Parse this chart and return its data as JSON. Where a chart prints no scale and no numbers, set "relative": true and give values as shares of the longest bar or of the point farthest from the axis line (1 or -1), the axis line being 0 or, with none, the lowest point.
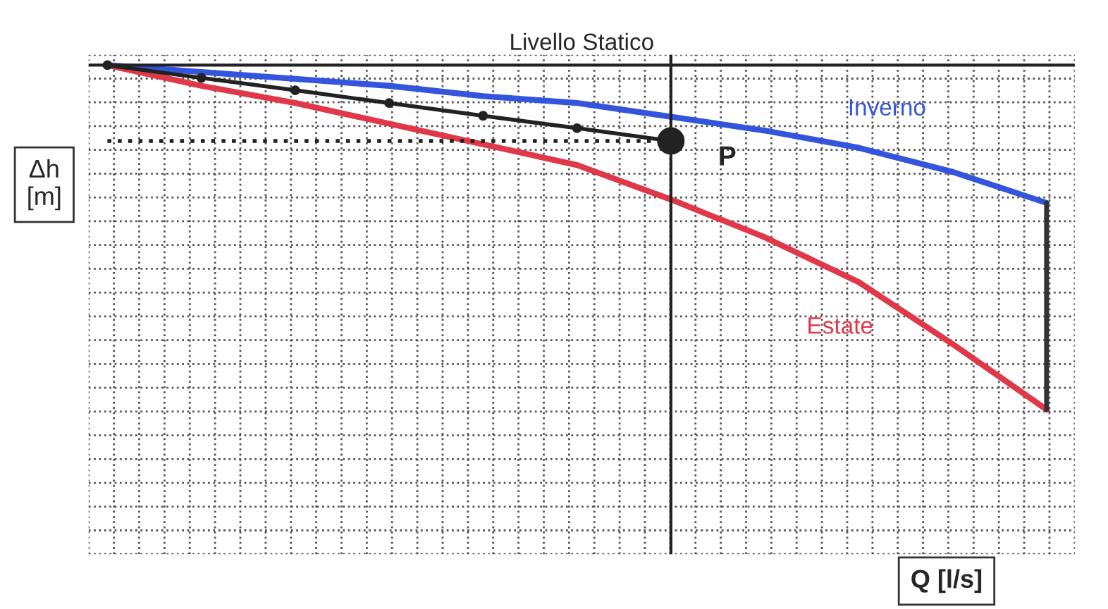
{
  "chart_data": {
    "type": "line",
    "relative": true,
    "ylabel": "Δh\n[m]",
    "categories": [
      null,
      null,
      null,
      null,
      null,
      null,
      null,
      null,
      null,
      null,
      null
    ],
    "series": [
      {
        "name": "Inverno",
        "color": "#3355dd",
        "values": [
          0,
          -0.02,
          -0.04,
          -0.06,
          -0.09,
          -0.11,
          -0.15,
          -0.19,
          -0.24,
          -0.31,
          -0.4
        ]
      },
      {
        "name": "Estate",
        "color": "#e03848",
        "values": [
          0,
          -0.06,
          -0.11,
          -0.17,
          -0.23,
          -0.29,
          -0.39,
          -0.5,
          -0.63,
          -0.81,
          -1
        ]
      },
      {
        "color": "#222222",
        "marker": "circle",
        "values": [
          0,
          -0.037,
          -0.073,
          -0.11,
          -0.147,
          -0.183,
          -0.22,
          null,
          null,
          null,
          null
        ]
      },
      {
        "color": "#222222",
        "line_style": "dotted",
        "values": [
          -0.22,
          -0.22,
          -0.22,
          -0.22,
          -0.22,
          -0.22,
          -0.22,
          null,
          null,
          null,
          null
        ]
      }
    ],
    "ref_lines": [
      {
        "axis": "y",
        "value": 0,
        "label": "Livello Statico",
        "color": "#222222"
      }
    ],
    "annotations": [
      "P",
      "Q [l/s]"
    ],
    "grid": true,
    "tick_labels": false
  }
}
